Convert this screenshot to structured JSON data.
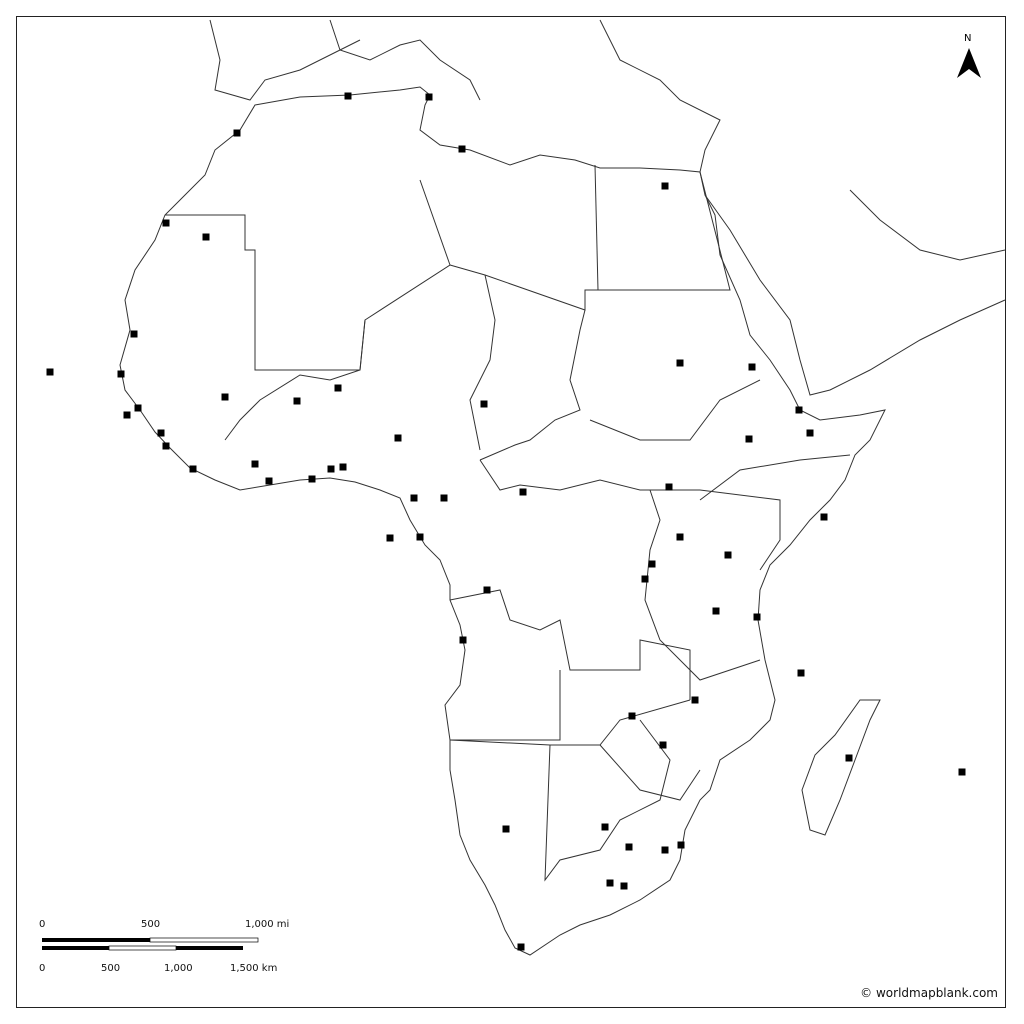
{
  "map": {
    "north_label": "N",
    "scale_miles": {
      "labels": [
        "0",
        "500",
        "1,000 mi"
      ]
    },
    "scale_km": {
      "labels": [
        "0",
        "500",
        "1,000",
        "1,500 km"
      ]
    },
    "credit": "© worldmapblank.com",
    "colors": {
      "land_stroke": "#222222",
      "background": "#ffffff",
      "marker": "#000000"
    }
  }
}
